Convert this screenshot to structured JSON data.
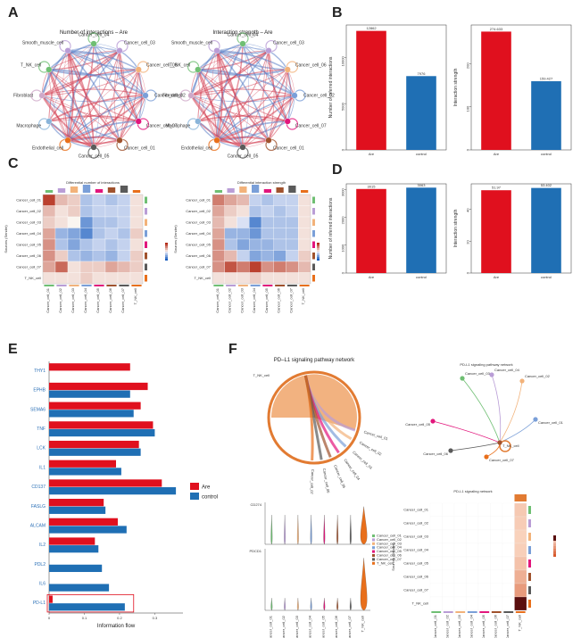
{
  "panels": {
    "A": "A",
    "B": "B",
    "C": "C",
    "D": "D",
    "E": "E",
    "F": "F"
  },
  "colors": {
    "are": "#e0101e",
    "control": "#1f6fb4",
    "node_palette": [
      "#6fbf73",
      "#b99dd6",
      "#f2b27a",
      "#7a9fd8",
      "#e2167c",
      "#a0522d",
      "#5a5a5a",
      "#e86f1b",
      "#8ab4d9",
      "#cfa9c9"
    ]
  },
  "chart_data": [
    {
      "type": "network",
      "panel": "A-left",
      "title": "Number of interactions – Are",
      "nodes": [
        "Cancer_cell_04",
        "Cancer_cell_03",
        "Cancer_cell_06",
        "Cancer_cell_02",
        "Cancer_cell_07",
        "Cancer_cell_01",
        "Cancer_cell_05",
        "Endothelial_cell",
        "Macrophage",
        "Fibroblast",
        "T_NK_cell",
        "Smooth_muscle_cell"
      ]
    },
    {
      "type": "network",
      "panel": "A-right",
      "title": "Interaction strength – Are",
      "nodes": [
        "Cancer_cell_04",
        "Cancer_cell_03",
        "Cancer_cell_06",
        "Cancer_cell_02",
        "Cancer_cell_07",
        "Cancer_cell_01",
        "Cancer_cell_05",
        "Endothelial_cell",
        "Macrophage",
        "Fibroblast",
        "T_NK_cell",
        "Smooth_muscle_cell"
      ]
    },
    {
      "type": "bar",
      "panel": "B-left",
      "categories": [
        "Are",
        "control"
      ],
      "values": [
        12862,
        7976
      ],
      "value_labels": [
        "12862",
        "7976"
      ],
      "ylabel": "Number of inferred interactions",
      "ylim": [
        0,
        13500
      ],
      "yticks": [
        "0",
        "5000",
        "10000"
      ]
    },
    {
      "type": "bar",
      "panel": "B-right",
      "categories": [
        "Are",
        "control"
      ],
      "values": [
        274.633,
        159.427
      ],
      "value_labels": [
        "274.633",
        "159.427"
      ],
      "ylabel": "Interaction strength",
      "ylim": [
        0,
        290
      ],
      "yticks": [
        "0",
        "100",
        "200"
      ]
    },
    {
      "type": "heatmap",
      "panel": "C-left",
      "title": "Differential number of interactions",
      "ylabel": "Sources (Sender)",
      "rows": [
        "Cancer_cell_01",
        "Cancer_cell_02",
        "Cancer_cell_03",
        "Cancer_cell_04",
        "Cancer_cell_05",
        "Cancer_cell_06",
        "Cancer_cell_07",
        "T_NK_cell"
      ],
      "cols": [
        "Cancer_cell_01",
        "Cancer_cell_02",
        "Cancer_cell_03",
        "Cancer_cell_04",
        "Cancer_cell_05",
        "Cancer_cell_06",
        "Cancer_cell_07",
        "T_NK_cell"
      ],
      "values": [
        [
          0.9,
          0.3,
          0.2,
          -0.3,
          -0.2,
          -0.3,
          -0.2,
          0.1
        ],
        [
          0.3,
          0.1,
          0.2,
          -0.3,
          -0.2,
          -0.2,
          -0.2,
          0.1
        ],
        [
          0.2,
          0.1,
          0.0,
          -0.6,
          -0.3,
          -0.3,
          -0.2,
          0.1
        ],
        [
          0.4,
          -0.4,
          -0.5,
          -0.7,
          -0.3,
          -0.2,
          -0.3,
          0.2
        ],
        [
          0.5,
          -0.3,
          -0.5,
          -0.3,
          -0.2,
          -0.3,
          -0.2,
          0.1
        ],
        [
          0.5,
          0.2,
          -0.3,
          -0.4,
          -0.3,
          -0.4,
          -0.2,
          0.2
        ],
        [
          0.4,
          0.7,
          0.1,
          0.2,
          0.2,
          0.4,
          0.3,
          0.2
        ],
        [
          0.1,
          0.1,
          0.1,
          0.2,
          0.1,
          0.1,
          0.1,
          0.1
        ]
      ]
    },
    {
      "type": "heatmap",
      "panel": "C-right",
      "title": "Differential interaction strength",
      "ylabel": "Sources (Sender)",
      "rows": [
        "Cancer_cell_01",
        "Cancer_cell_02",
        "Cancer_cell_03",
        "Cancer_cell_04",
        "Cancer_cell_05",
        "Cancer_cell_06",
        "Cancer_cell_07",
        "T_NK_cell"
      ],
      "cols": [
        "Cancer_cell_01",
        "Cancer_cell_02",
        "Cancer_cell_03",
        "Cancer_cell_04",
        "Cancer_cell_05",
        "Cancer_cell_06",
        "Cancer_cell_07",
        "T_NK_cell"
      ],
      "values": [
        [
          0.6,
          0.4,
          0.3,
          -0.2,
          -0.3,
          -0.2,
          -0.2,
          0.1
        ],
        [
          0.4,
          0.2,
          0.1,
          -0.3,
          -0.2,
          -0.3,
          -0.2,
          0.1
        ],
        [
          0.3,
          0.1,
          -0.1,
          -0.7,
          -0.3,
          -0.3,
          -0.3,
          0.1
        ],
        [
          0.4,
          -0.4,
          -0.4,
          -0.6,
          -0.3,
          -0.3,
          -0.3,
          0.1
        ],
        [
          0.5,
          -0.3,
          -0.5,
          -0.4,
          -0.4,
          -0.3,
          -0.3,
          0.1
        ],
        [
          0.5,
          0.3,
          -0.2,
          -0.5,
          -0.4,
          -0.5,
          -0.2,
          0.2
        ],
        [
          0.5,
          0.8,
          0.6,
          0.9,
          0.5,
          0.6,
          0.5,
          0.3
        ],
        [
          0.1,
          0.1,
          0.1,
          0.2,
          0.1,
          0.1,
          0.1,
          0.1
        ]
      ]
    },
    {
      "type": "bar",
      "panel": "D-left",
      "categories": [
        "Are",
        "control"
      ],
      "values": [
        3015,
        3063
      ],
      "value_labels": [
        "3015",
        "3063"
      ],
      "ylabel": "Number of inferred interactions",
      "ylim": [
        0,
        3200
      ],
      "yticks": [
        "0",
        "1000",
        "2000",
        "3000"
      ]
    },
    {
      "type": "bar",
      "panel": "D-right",
      "categories": [
        "Are",
        "control"
      ],
      "values": [
        51.97,
        53.402
      ],
      "value_labels": [
        "51.97",
        "53.402"
      ],
      "ylabel": "Interaction strength",
      "ylim": [
        0,
        56
      ],
      "yticks": [
        "0",
        "20",
        "40"
      ]
    },
    {
      "type": "bar",
      "panel": "E",
      "orientation": "horizontal",
      "categories": [
        "THY1",
        "EPHB",
        "SEMA6",
        "TNF",
        "LCK",
        "IL1",
        "CD137",
        "FASLG",
        "ALCAM",
        "IL2",
        "PDL2",
        "IL6",
        "PD-L1"
      ],
      "series": [
        {
          "name": "Are",
          "values": [
            0.23,
            0.28,
            0.26,
            0.295,
            0.255,
            0.19,
            0.32,
            0.155,
            0.195,
            0.13,
            null,
            null,
            0.01
          ]
        },
        {
          "name": "control",
          "values": [
            null,
            0.23,
            0.24,
            0.3,
            0.26,
            0.205,
            0.36,
            0.16,
            0.22,
            0.14,
            0.15,
            0.17,
            0.215
          ]
        }
      ],
      "xlabel": "Information flow",
      "xlim": [
        0,
        0.38
      ],
      "xticks": [
        "0",
        "0.1",
        "0.2",
        "0.3"
      ],
      "highlight": "PD-L1",
      "legend_placement": "right"
    },
    {
      "type": "chord",
      "panel": "F-chord",
      "title": "PD–L1 signaling pathway network",
      "nodes": [
        "T_NK_cell",
        "Cancer_cell_01",
        "Cancer_cell_02",
        "Cancer_cell_03",
        "Cancer_cell_04",
        "Cancer_cell_05",
        "Cancer_cell_06",
        "Cancer_cell_07"
      ]
    },
    {
      "type": "network",
      "panel": "F-network",
      "title": "PD-L1 signaling pathway network",
      "nodes": [
        "Cancer_cell_03",
        "Cancer_cell_04",
        "Cancer_cell_02",
        "Cancer_cell_01",
        "Cancer_cell_05",
        "T_NK_cell",
        "Cancer_cell_06",
        "Cancer_cell_07"
      ]
    },
    {
      "type": "violin",
      "panel": "F-violin",
      "genes": [
        "CD274",
        "PDCD1"
      ],
      "groups": [
        "Cancer_cell_01",
        "Cancer_cell_02",
        "Cancer_cell_03",
        "Cancer_cell_04",
        "Cancer_cell_05",
        "Cancer_cell_06",
        "Cancer_cell_07",
        "T_NK_cell"
      ],
      "legend": [
        "Cancer_cell_01",
        "Cancer_cell_02",
        "Cancer_cell_03",
        "Cancer_cell_04",
        "Cancer_cell_05",
        "Cancer_cell_06",
        "Cancer_cell_07",
        "T_NK_cell"
      ]
    },
    {
      "type": "heatmap",
      "panel": "F-heatmap",
      "title": "PD-L1 signaling network",
      "ylabel": "Sources (Sender)",
      "rows": [
        "Cancer_cell_01",
        "Cancer_cell_02",
        "Cancer_cell_03",
        "Cancer_cell_04",
        "Cancer_cell_05",
        "Cancer_cell_06",
        "Cancer_cell_07",
        "T_NK_cell"
      ],
      "cols": [
        "Cancer_cell_01",
        "Cancer_cell_02",
        "Cancer_cell_03",
        "Cancer_cell_04",
        "Cancer_cell_05",
        "Cancer_cell_06",
        "Cancer_cell_07",
        "T_NK_cell"
      ],
      "values": [
        [
          0,
          0,
          0,
          0,
          0,
          0,
          0,
          0.15
        ],
        [
          0,
          0,
          0,
          0,
          0,
          0,
          0,
          0.12
        ],
        [
          0,
          0,
          0,
          0,
          0,
          0,
          0,
          0.08
        ],
        [
          0,
          0,
          0,
          0,
          0,
          0,
          0,
          0.1
        ],
        [
          0,
          0,
          0,
          0,
          0,
          0,
          0,
          0.2
        ],
        [
          0,
          0,
          0,
          0,
          0,
          0,
          0,
          0.35
        ],
        [
          0,
          0,
          0,
          0,
          0,
          0,
          0,
          0.5
        ],
        [
          0,
          0,
          0,
          0,
          0,
          0,
          0,
          1.0
        ]
      ]
    }
  ]
}
